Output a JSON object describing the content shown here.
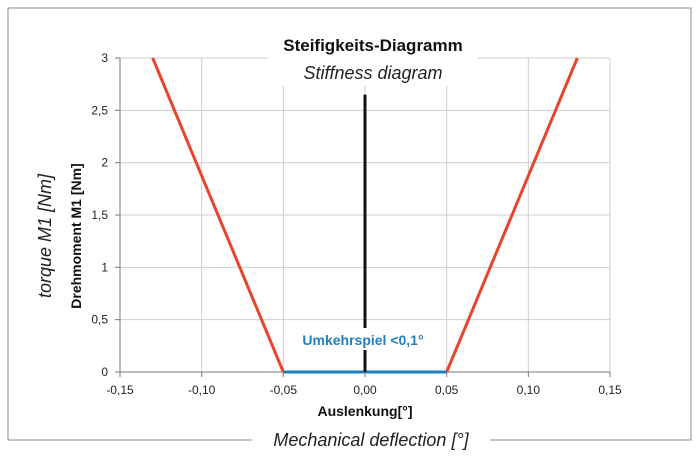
{
  "chart_data": {
    "type": "line",
    "title": "Steifigkeits-Diagramm",
    "subtitle": "Stiffness diagram",
    "xlabel": "Auslenkung[°]",
    "xlabel_en": "Mechanical deflection [°]",
    "ylabel": "Drehmoment M1 [Nm]",
    "ylabel_en": "torque M1 [Nm]",
    "xlim": [
      -0.15,
      0.15
    ],
    "ylim": [
      0,
      3
    ],
    "grid": true,
    "x_ticks": [
      {
        "value": -0.15,
        "label": "-0,15"
      },
      {
        "value": -0.1,
        "label": "-0,10"
      },
      {
        "value": -0.05,
        "label": "-0,05"
      },
      {
        "value": 0.0,
        "label": "0,00"
      },
      {
        "value": 0.05,
        "label": "0,05"
      },
      {
        "value": 0.1,
        "label": "0,10"
      },
      {
        "value": 0.15,
        "label": "0,15"
      }
    ],
    "y_ticks": [
      {
        "value": 0,
        "label": "0"
      },
      {
        "value": 0.5,
        "label": "0,5"
      },
      {
        "value": 1,
        "label": "1"
      },
      {
        "value": 1.5,
        "label": "1,5"
      },
      {
        "value": 2,
        "label": "2"
      },
      {
        "value": 2.5,
        "label": "2,5"
      },
      {
        "value": 3,
        "label": "3"
      }
    ],
    "series": [
      {
        "name": "stiffness-left",
        "color": "#e8452c",
        "x": [
          -0.13,
          -0.05
        ],
        "y": [
          3,
          0
        ]
      },
      {
        "name": "stiffness-right",
        "color": "#e8452c",
        "x": [
          0.05,
          0.13
        ],
        "y": [
          0,
          3
        ]
      },
      {
        "name": "backlash",
        "color": "#1f7fc1",
        "x": [
          -0.05,
          0.05
        ],
        "y": [
          0,
          0
        ]
      },
      {
        "name": "zero-line",
        "color": "#111111",
        "x": [
          0,
          0
        ],
        "y": [
          0,
          2.65
        ]
      }
    ],
    "annotations": [
      {
        "text": "Umkehrspiel  <0,1°",
        "x": 0,
        "y": 0.3,
        "color": "#1f7fc1"
      }
    ]
  }
}
